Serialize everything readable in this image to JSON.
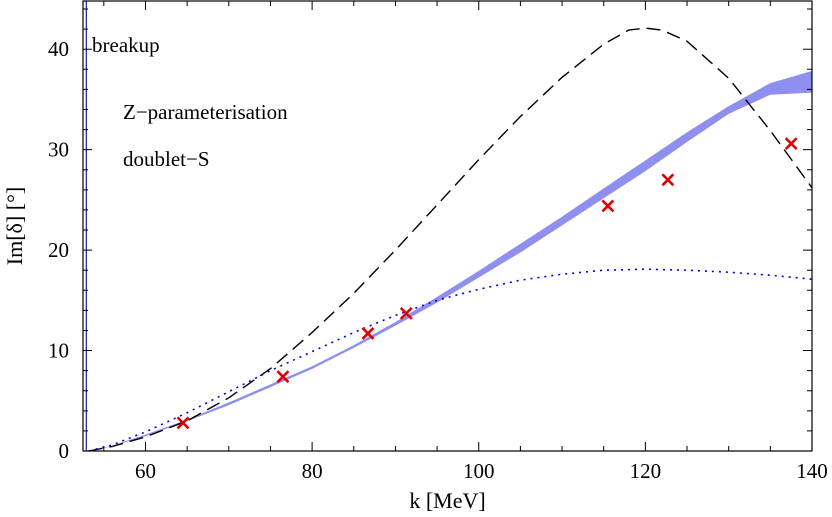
{
  "chart_data": {
    "type": "line",
    "xlabel": "k [MeV]",
    "ylabel": "Im[δ] [°]",
    "xlim": [
      52.5,
      140
    ],
    "ylim": [
      0,
      44.8
    ],
    "xticks": [
      60,
      80,
      100,
      120,
      140
    ],
    "yticks": [
      0,
      10,
      20,
      30,
      40
    ],
    "xtick_labels": [
      "60",
      "80",
      "100",
      "120",
      "140"
    ],
    "ytick_labels": [
      "0",
      "10",
      "20",
      "30",
      "40"
    ],
    "annotations": [
      "breakup",
      "Z−parameterisation",
      "doublet−S"
    ],
    "threshold_line_x": 52.9,
    "colors": {
      "band": "#8f8ff0",
      "dashed": "#000000",
      "dotted": "#0000e0",
      "markers": "#e00000",
      "threshold": "#2a2aa0"
    },
    "series": [
      {
        "name": "band",
        "style": "band",
        "x": [
          53.2,
          56,
          60,
          65,
          70,
          75,
          80,
          85,
          90,
          95,
          100,
          105,
          110,
          115,
          120,
          125,
          130,
          135,
          140
        ],
        "lower": [
          0,
          0.5,
          1.5,
          3.0,
          4.6,
          6.4,
          8.2,
          10.3,
          12.5,
          14.8,
          17.3,
          19.8,
          22.5,
          25.2,
          27.9,
          30.8,
          33.6,
          35.5,
          35.7
        ],
        "upper": [
          0,
          0.5,
          1.6,
          3.1,
          4.8,
          6.6,
          8.4,
          10.5,
          12.8,
          15.3,
          17.9,
          20.6,
          23.3,
          26.1,
          28.9,
          31.7,
          34.3,
          36.6,
          37.8
        ]
      },
      {
        "name": "dashed",
        "style": "dashed",
        "x": [
          53.2,
          56,
          60,
          65,
          70,
          75,
          80,
          85,
          90,
          95,
          100,
          105,
          110,
          115,
          118,
          120,
          122,
          125,
          130,
          135,
          140
        ],
        "values": [
          0,
          0.45,
          1.4,
          3.0,
          5.3,
          8.2,
          11.8,
          15.7,
          20.0,
          24.5,
          29.0,
          33.3,
          37.2,
          40.5,
          41.9,
          42.1,
          41.9,
          40.8,
          37.1,
          31.9,
          26.2
        ]
      },
      {
        "name": "dotted",
        "style": "dotted",
        "x": [
          53.2,
          56,
          60,
          65,
          70,
          75,
          80,
          85,
          90,
          95,
          100,
          105,
          110,
          115,
          120,
          125,
          130,
          135,
          140
        ],
        "values": [
          0,
          0.6,
          1.9,
          3.8,
          5.9,
          8.0,
          9.9,
          11.8,
          13.5,
          15.0,
          16.1,
          17.0,
          17.6,
          18.0,
          18.1,
          18.0,
          17.8,
          17.5,
          17.1
        ]
      },
      {
        "name": "data-points",
        "style": "markers",
        "x": [
          64.5,
          76.5,
          86.7,
          91.3,
          115.5,
          122.7,
          137.5
        ],
        "values": [
          2.8,
          7.4,
          11.7,
          13.7,
          24.4,
          27.0,
          30.6
        ]
      }
    ]
  }
}
